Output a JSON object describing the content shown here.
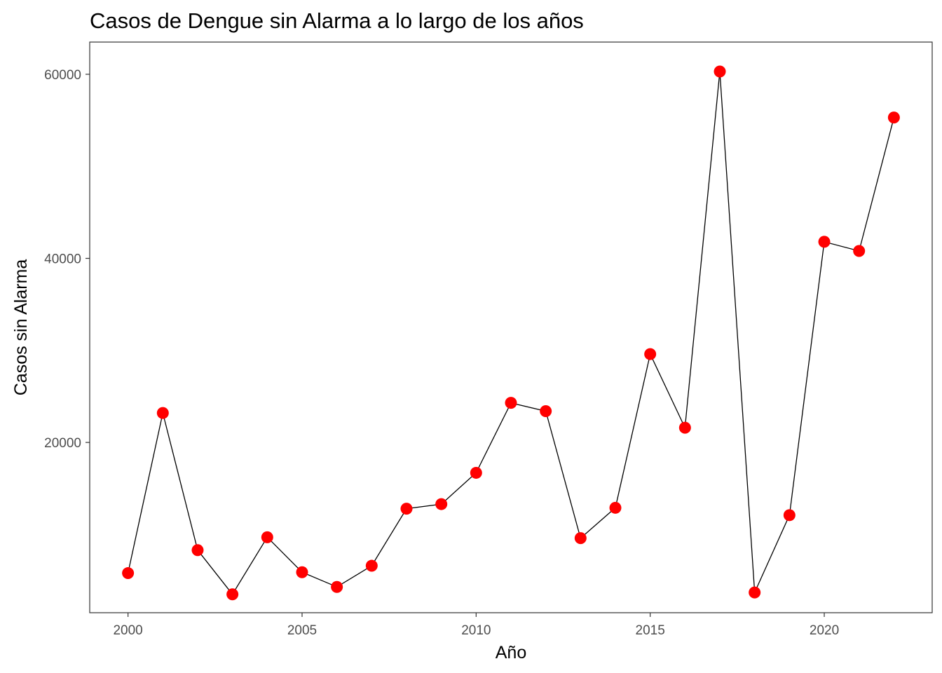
{
  "chart_data": {
    "type": "line",
    "title": "Casos de Dengue sin Alarma a lo largo de los años",
    "xlabel": "Año",
    "ylabel": "Casos sin Alarma",
    "x": [
      2000,
      2001,
      2002,
      2003,
      2004,
      2005,
      2006,
      2007,
      2008,
      2009,
      2010,
      2011,
      2012,
      2013,
      2014,
      2015,
      2016,
      2017,
      2018,
      2019,
      2020,
      2021,
      2022
    ],
    "series": [
      {
        "values": [
          5800,
          23200,
          8300,
          3500,
          9700,
          5900,
          4300,
          6600,
          12800,
          13300,
          16700,
          24300,
          23400,
          9600,
          12900,
          29600,
          21600,
          60300,
          3700,
          12100,
          41800,
          40800,
          55300
        ]
      }
    ],
    "xlim": [
      1998.9,
      2023.1
    ],
    "ylim": [
      1500,
      63500
    ],
    "xticks": [
      "2000",
      "2005",
      "2010",
      "2015",
      "2020"
    ],
    "yticks": [
      "20000",
      "40000",
      "60000"
    ],
    "grid": false,
    "line_color": "#000000",
    "point_color": "#ff0000",
    "legend": "none"
  }
}
